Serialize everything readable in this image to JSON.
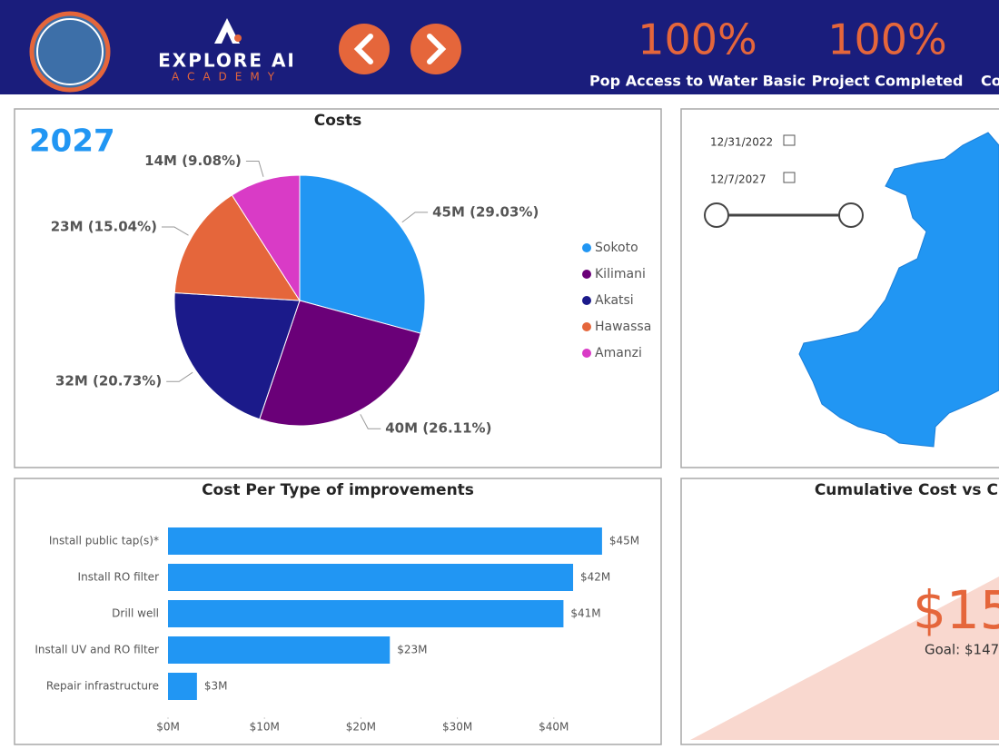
{
  "header": {
    "logo_line1": "EXPLORE AI",
    "logo_line2": "ACADEMY",
    "kpis": [
      {
        "value": "100%",
        "label": "Pop Access to Water Basic"
      },
      {
        "value": "100%",
        "label": "Project Completed"
      },
      {
        "label": "Co"
      }
    ]
  },
  "costs_panel": {
    "year": "2027"
  },
  "map_panel": {
    "date_start": "12/31/2022",
    "date_end": "12/7/2027"
  },
  "cumulative_panel": {
    "title": "Cumulative Cost vs Cumulaitv",
    "value": "$15",
    "goal": "Goal: $147"
  },
  "chart_data": [
    {
      "type": "pie",
      "title": "Costs",
      "categories": [
        "Sokoto",
        "Kilimani",
        "Akatsi",
        "Hawassa",
        "Amanzi"
      ],
      "values": [
        45,
        40,
        32,
        23,
        14
      ],
      "value_labels": [
        "45M (29.03%)",
        "40M (26.11%)",
        "32M (20.73%)",
        "23M (15.04%)",
        "14M (9.08%)"
      ],
      "colors": [
        "#2196f3",
        "#6a0078",
        "#1b1a8a",
        "#e5663b",
        "#d93bc6"
      ]
    },
    {
      "type": "bar",
      "orientation": "horizontal",
      "title": "Cost Per Type of improvements",
      "categories": [
        "Install public tap(s)*",
        "Install RO filter",
        "Drill well",
        "Install UV and RO filter",
        "Repair infrastructure"
      ],
      "values": [
        45,
        42,
        41,
        23,
        3
      ],
      "value_labels": [
        "$45M",
        "$42M",
        "$41M",
        "$23M",
        "$3M"
      ],
      "color": "#2196f3",
      "xlim": [
        0,
        50
      ],
      "xticks": [
        {
          "value": 0,
          "label": "$0M"
        },
        {
          "value": 10,
          "label": "$10M"
        },
        {
          "value": 20,
          "label": "$20M"
        },
        {
          "value": 30,
          "label": "$30M"
        },
        {
          "value": 40,
          "label": "$40M"
        }
      ]
    }
  ]
}
